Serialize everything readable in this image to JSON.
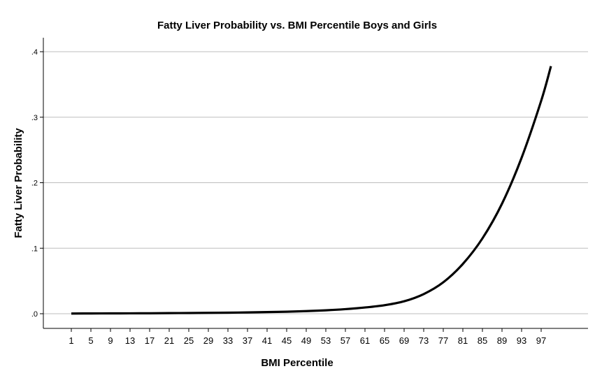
{
  "chart_data": {
    "type": "line",
    "title": "Fatty Liver Probability vs. BMI Percentile Boys and Girls",
    "xlabel": "BMI Percentile",
    "ylabel": "Fatty Liver Probability",
    "xlim": [
      1,
      99
    ],
    "ylim": [
      0,
      0.4
    ],
    "x_ticks": [
      "1",
      "5",
      "9",
      "13",
      "17",
      "21",
      "25",
      "29",
      "33",
      "37",
      "41",
      "45",
      "49",
      "53",
      "57",
      "61",
      "65",
      "69",
      "73",
      "77",
      "81",
      "85",
      "89",
      "93",
      "97"
    ],
    "y_ticks": [
      {
        "value": 0.0,
        "label": ".0"
      },
      {
        "value": 0.1,
        "label": ".1"
      },
      {
        "value": 0.2,
        "label": ".2"
      },
      {
        "value": 0.3,
        "label": ".3"
      },
      {
        "value": 0.4,
        "label": ".4"
      }
    ],
    "grid": true,
    "legend": "none",
    "series": [
      {
        "color": "#000000",
        "x": [
          1,
          5,
          9,
          13,
          17,
          21,
          25,
          29,
          33,
          37,
          41,
          45,
          49,
          53,
          57,
          61,
          65,
          69,
          73,
          77,
          81,
          85,
          89,
          93,
          97,
          99
        ],
        "y": [
          0.0003,
          0.0004,
          0.0005,
          0.0006,
          0.0007,
          0.0009,
          0.0011,
          0.0013,
          0.0016,
          0.002,
          0.0025,
          0.0031,
          0.004,
          0.0052,
          0.007,
          0.0095,
          0.013,
          0.019,
          0.03,
          0.048,
          0.076,
          0.115,
          0.168,
          0.238,
          0.325,
          0.378
        ]
      }
    ]
  }
}
